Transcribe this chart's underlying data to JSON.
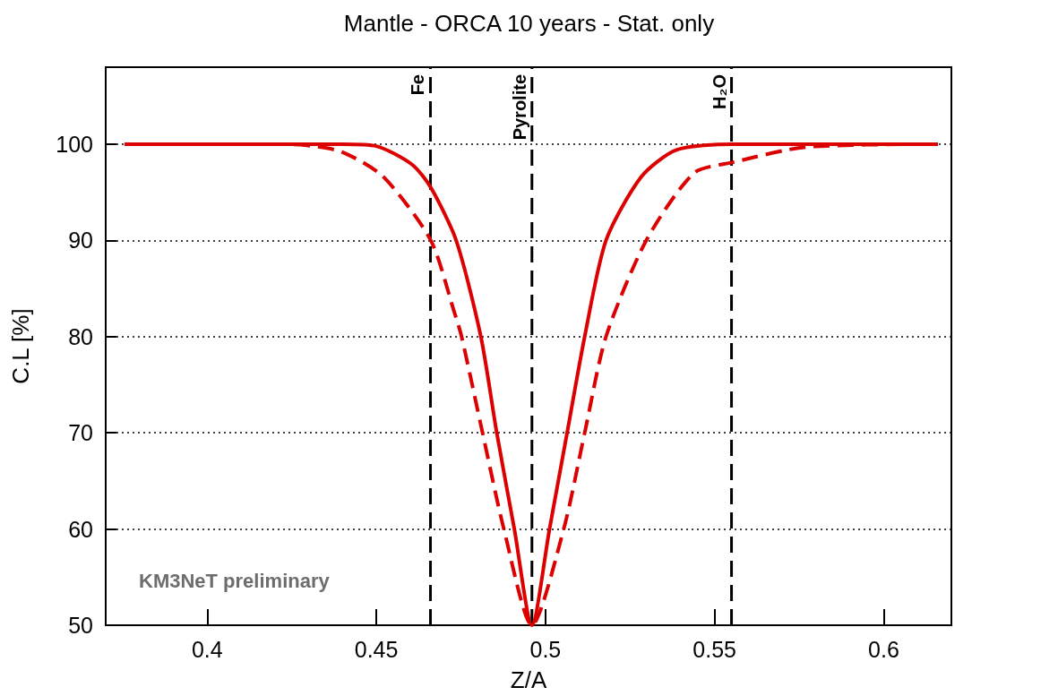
{
  "chart_data": {
    "type": "line",
    "title": "Mantle - ORCA 10 years - Stat. only",
    "xlabel": "Z/A",
    "ylabel": "C.L [%]",
    "xlim": [
      0.37,
      0.62
    ],
    "xticks": [
      0.4,
      0.45,
      0.5,
      0.55,
      0.6
    ],
    "ylim": [
      50,
      108
    ],
    "yticks": [
      50,
      60,
      70,
      80,
      90,
      100
    ],
    "grid": "y",
    "series": [
      {
        "color": "#dd0000",
        "line_style": "solid",
        "x": [
          0.3756,
          0.42,
          0.44,
          0.45,
          0.4605,
          0.4661,
          0.4736,
          0.4809,
          0.4856,
          0.4908,
          0.496,
          0.5012,
          0.5064,
          0.5116,
          0.5179,
          0.5283,
          0.5387,
          0.5552,
          0.58,
          0.616
        ],
        "values": [
          100,
          100,
          100,
          99.8,
          97.9,
          95.5,
          90,
          80,
          70,
          60,
          50,
          60,
          70,
          80,
          90,
          96.6,
          99.4,
          100,
          100,
          100
        ]
      },
      {
        "color": "#dd0000",
        "line_style": "dashed",
        "x": [
          0.3756,
          0.42,
          0.4288,
          0.4398,
          0.4521,
          0.4661,
          0.473,
          0.4752,
          0.4814,
          0.4877,
          0.496,
          0.5054,
          0.5116,
          0.5179,
          0.5298,
          0.5439,
          0.5552,
          0.577,
          0.616
        ],
        "values": [
          100,
          100,
          99.9,
          99.2,
          96.6,
          90,
          82.6,
          80,
          70,
          60,
          50,
          60,
          70,
          80,
          90,
          97,
          98.1,
          99.7,
          100
        ]
      }
    ],
    "ref_lines": [
      {
        "axis": "x",
        "value": 0.466,
        "label": "Fe",
        "color": "#000000",
        "line_style": "dashed"
      },
      {
        "axis": "x",
        "value": 0.496,
        "label": "Pyrolite",
        "color": "#000000",
        "line_style": "dashed"
      },
      {
        "axis": "x",
        "value": 0.555,
        "label": "H₂O",
        "color": "#000000",
        "line_style": "dashed"
      }
    ],
    "annotations": [
      "KM3NeT preliminary"
    ]
  }
}
